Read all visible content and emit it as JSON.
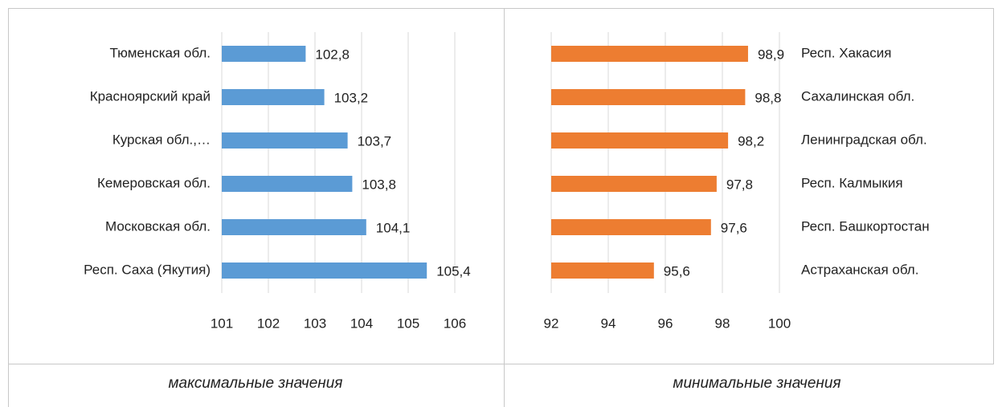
{
  "chart_data": [
    {
      "type": "barh",
      "caption": "максимальные значения",
      "categories": [
        "Тюменская обл.",
        "Красноярский край",
        "Курская обл.,…",
        "Кемеровская обл.",
        "Московская обл.",
        "Респ. Саха (Якутия)"
      ],
      "values": [
        102.8,
        103.2,
        103.7,
        103.8,
        104.1,
        105.4
      ],
      "value_labels": [
        "102,8",
        "103,2",
        "103,7",
        "103,8",
        "104,1",
        "105,4"
      ],
      "color": "#5b9bd5",
      "xlim": [
        101,
        106
      ],
      "xticks": [
        101,
        102,
        103,
        104,
        105,
        106
      ],
      "grid": true,
      "category_side": "left"
    },
    {
      "type": "barh",
      "caption": "минимальные значения",
      "categories": [
        "Респ. Хакасия",
        "Сахалинская обл.",
        "Ленинградская обл.",
        "Респ. Калмыкия",
        "Респ. Башкортостан",
        "Астраханская обл."
      ],
      "values": [
        98.9,
        98.8,
        98.2,
        97.8,
        97.6,
        95.6
      ],
      "value_labels": [
        "98,9",
        "98,8",
        "98,2",
        "97,8",
        "97,6",
        "95,6"
      ],
      "color": "#ed7d31",
      "xlim": [
        92,
        100
      ],
      "xticks": [
        92,
        94,
        96,
        98,
        100
      ],
      "grid": true,
      "category_side": "right"
    }
  ]
}
